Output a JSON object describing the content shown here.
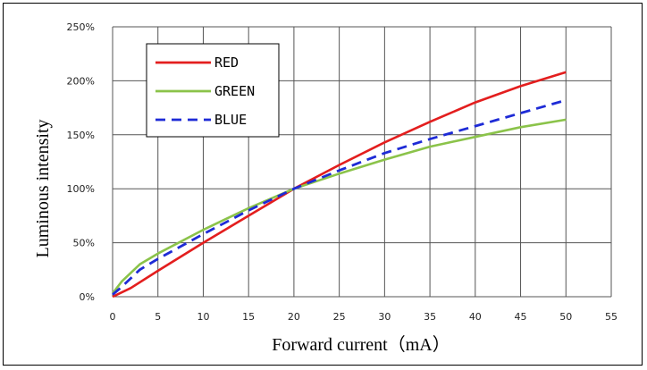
{
  "chart_data": {
    "type": "line",
    "title": "",
    "xlabel": "Forward current（mA）",
    "ylabel": "Luminous intensity",
    "xlim": [
      0,
      55
    ],
    "ylim": [
      0,
      250
    ],
    "x_ticks": [
      0,
      5,
      10,
      15,
      20,
      25,
      30,
      35,
      40,
      45,
      50,
      55
    ],
    "y_ticks": [
      0,
      50,
      100,
      150,
      200,
      250
    ],
    "y_tick_labels": [
      "0%",
      "50%",
      "100%",
      "150%",
      "200%",
      "250%"
    ],
    "grid": true,
    "legend_position": "top-left",
    "series": [
      {
        "name": "RED",
        "color": "#e31e1e",
        "style": "solid",
        "points": [
          [
            0,
            0
          ],
          [
            2,
            8
          ],
          [
            5,
            24
          ],
          [
            10,
            50
          ],
          [
            15,
            75
          ],
          [
            20,
            100
          ],
          [
            25,
            122
          ],
          [
            30,
            143
          ],
          [
            35,
            162
          ],
          [
            40,
            180
          ],
          [
            45,
            195
          ],
          [
            50,
            208
          ]
        ]
      },
      {
        "name": "GREEN",
        "color": "#8bc34a",
        "style": "solid",
        "points": [
          [
            0,
            3
          ],
          [
            1,
            14
          ],
          [
            3,
            30
          ],
          [
            5,
            40
          ],
          [
            10,
            62
          ],
          [
            15,
            82
          ],
          [
            20,
            100
          ],
          [
            25,
            114
          ],
          [
            30,
            127
          ],
          [
            35,
            139
          ],
          [
            40,
            148
          ],
          [
            45,
            157
          ],
          [
            50,
            164
          ]
        ]
      },
      {
        "name": "BLUE",
        "color": "#1e2bd6",
        "style": "dashed",
        "points": [
          [
            0,
            2
          ],
          [
            1,
            9
          ],
          [
            3,
            25
          ],
          [
            5,
            35
          ],
          [
            10,
            58
          ],
          [
            15,
            80
          ],
          [
            20,
            100
          ],
          [
            25,
            117
          ],
          [
            30,
            133
          ],
          [
            35,
            146
          ],
          [
            40,
            158
          ],
          [
            45,
            170
          ],
          [
            50,
            182
          ]
        ]
      }
    ]
  }
}
